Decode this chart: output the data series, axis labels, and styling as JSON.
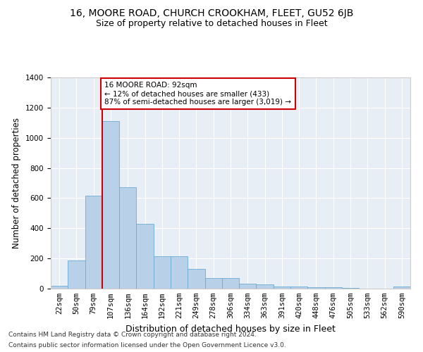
{
  "title": "16, MOORE ROAD, CHURCH CROOKHAM, FLEET, GU52 6JB",
  "subtitle": "Size of property relative to detached houses in Fleet",
  "xlabel": "Distribution of detached houses by size in Fleet",
  "ylabel": "Number of detached properties",
  "bar_labels": [
    "22sqm",
    "50sqm",
    "79sqm",
    "107sqm",
    "136sqm",
    "164sqm",
    "192sqm",
    "221sqm",
    "249sqm",
    "278sqm",
    "306sqm",
    "334sqm",
    "363sqm",
    "391sqm",
    "420sqm",
    "448sqm",
    "476sqm",
    "505sqm",
    "533sqm",
    "562sqm",
    "590sqm"
  ],
  "bar_values": [
    20,
    185,
    615,
    1110,
    670,
    430,
    215,
    215,
    130,
    70,
    70,
    35,
    30,
    15,
    15,
    10,
    8,
    3,
    0,
    0,
    15
  ],
  "bar_color": "#b8d0e8",
  "bar_edgecolor": "#6aaad4",
  "vline_index": 2.5,
  "vline_color": "#cc0000",
  "annotation_text": "16 MOORE ROAD: 92sqm\n← 12% of detached houses are smaller (433)\n87% of semi-detached houses are larger (3,019) →",
  "annotation_box_color": "#cc0000",
  "ylim": [
    0,
    1400
  ],
  "yticks": [
    0,
    200,
    400,
    600,
    800,
    1000,
    1200,
    1400
  ],
  "background_color": "#e8eef5",
  "footer_line1": "Contains HM Land Registry data © Crown copyright and database right 2024.",
  "footer_line2": "Contains public sector information licensed under the Open Government Licence v3.0.",
  "title_fontsize": 10,
  "subtitle_fontsize": 9,
  "xlabel_fontsize": 9,
  "ylabel_fontsize": 8.5,
  "tick_fontsize": 7.5
}
